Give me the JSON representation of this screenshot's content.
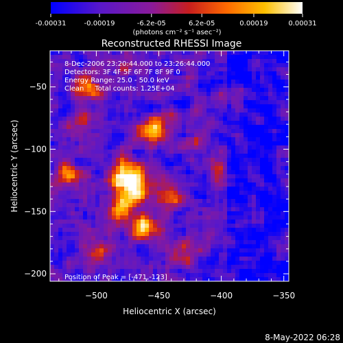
{
  "colorbar": {
    "tick_labels": [
      "-0.00031",
      "-0.00019",
      "-6.2e-05",
      "6.2e-05",
      "0.00019",
      "0.00031"
    ],
    "tick_values": [
      -0.00031,
      -0.00019,
      -6.2e-05,
      6.2e-05,
      0.00019,
      0.00031
    ],
    "range": [
      -0.00031,
      0.00031
    ],
    "units": "(photons cm⁻² s⁻¹ asec⁻²)",
    "colors": [
      "#0000ff",
      "#5a18c8",
      "#8a1a9a",
      "#c81e1e",
      "#ff6a00",
      "#ffc000",
      "#ffffff"
    ]
  },
  "chart_data": {
    "type": "heatmap",
    "title": "Reconstructed RHESSI Image",
    "xlabel": "Heliocentric X (arcsec)",
    "ylabel": "Heliocentric Y (arcsec)",
    "xlim": [
      -537,
      -346
    ],
    "ylim": [
      -206,
      -21
    ],
    "x_ticks": [
      -500,
      -450,
      -400,
      -350
    ],
    "y_ticks": [
      -50,
      -100,
      -150,
      -200
    ],
    "x_tick_labels": [
      "−500",
      "−450",
      "−400",
      "−350"
    ],
    "y_tick_labels": [
      "−50",
      "−100",
      "−150",
      "−200"
    ],
    "grid": false,
    "annotations": {
      "time": "8-Dec-2006 23:20:44.000 to 23:26:44.000",
      "detectors": "Detectors: 3F 4F 5F 6F 7F 8F 9F 0",
      "energy": "Energy Range: 25.0 - 50.0 keV",
      "method": "Clean     Total counts: 1.25E+04",
      "peak": "Position of Peak = [-471,-123]"
    },
    "peak_position": [
      -471,
      -123
    ],
    "total_counts": 12500,
    "energy_range_kev": [
      25.0,
      50.0
    ]
  },
  "footer": {
    "timestamp": "8-May-2022 06:28"
  }
}
